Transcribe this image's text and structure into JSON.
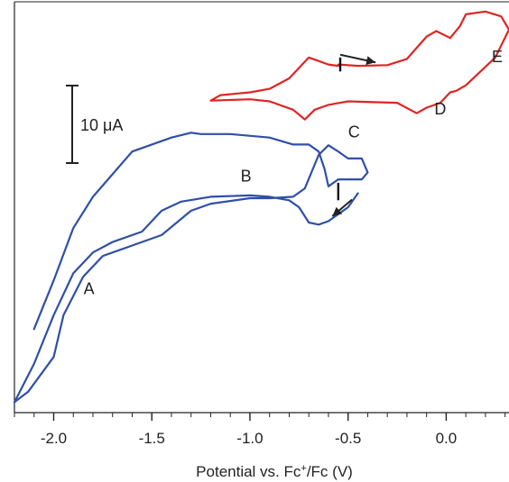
{
  "chart_data": {
    "type": "line",
    "title": "",
    "xlabel": "Potential vs. Fc",
    "xlabel_sup": "+",
    "xlabel_tail": "/Fc (V)",
    "ylabel": "",
    "xlim": [
      -2.2,
      0.32
    ],
    "x_ticks": [
      {
        "value": -2.0,
        "label": "-2.0"
      },
      {
        "value": -1.5,
        "label": "-1.5"
      },
      {
        "value": -1.0,
        "label": "-1.0"
      },
      {
        "value": -0.5,
        "label": "-0.5"
      },
      {
        "value": 0.0,
        "label": "0.0"
      }
    ],
    "grid": false,
    "scale_bar": {
      "label": "10 μA",
      "value_uA": 10
    },
    "series": [
      {
        "color": "#2f4fa8",
        "x": [
          -0.45,
          -0.5,
          -0.6,
          -0.65,
          -0.7,
          -0.75,
          -0.8,
          -0.9,
          -1.0,
          -1.2,
          -1.35,
          -1.45,
          -1.55,
          -1.7,
          -1.8,
          -1.9,
          -2.0,
          -2.1,
          -2.2,
          -2.13,
          -2.0,
          -1.95,
          -1.85,
          -1.75,
          -1.6,
          -1.45,
          -1.3,
          -1.2,
          -1.0,
          -0.9,
          -0.78,
          -0.72,
          -0.65,
          -0.6,
          -0.55,
          -0.5,
          -0.43,
          -0.4,
          -0.43,
          -0.55,
          -0.6,
          -0.62,
          -0.65,
          -0.7,
          -0.78,
          -0.9,
          -1.1,
          -1.25,
          -1.3,
          -1.4,
          -1.6,
          -1.8,
          -1.9,
          -2.0,
          -2.1
        ],
        "y": [
          -13.5,
          -15.5,
          -17.5,
          -18.0,
          -17.7,
          -15.5,
          -14.5,
          -14.0,
          -13.8,
          -14.0,
          -14.7,
          -16.0,
          -19.0,
          -20.5,
          -22.0,
          -25.0,
          -31.0,
          -38.0,
          -43.5,
          -42.0,
          -37.0,
          -31.0,
          -25.5,
          -22.5,
          -21.0,
          -19.5,
          -16.0,
          -15.0,
          -14.2,
          -14.2,
          -14.0,
          -12.8,
          -8.0,
          -6.6,
          -7.5,
          -8.5,
          -8.5,
          -10.5,
          -11.5,
          -11.5,
          -12.5,
          -10.0,
          -7.5,
          -6.5,
          -6.5,
          -5.5,
          -5.0,
          -5.0,
          -4.8,
          -5.5,
          -7.5,
          -14.0,
          -18.5,
          -26.0,
          -33.0
        ]
      },
      {
        "color": "#e02424",
        "x": [
          -0.55,
          -0.45,
          -0.3,
          -0.2,
          -0.1,
          -0.05,
          0.02,
          0.07,
          0.1,
          0.2,
          0.28,
          0.32,
          0.25,
          0.1,
          0.05,
          0.02,
          -0.03,
          -0.1,
          -0.15,
          -0.25,
          -0.5,
          -0.6,
          -0.67,
          -0.72,
          -0.78,
          -0.9,
          -1.0,
          -1.2,
          -1.15,
          -1.0,
          -0.9,
          -0.8,
          -0.7,
          -0.65,
          -0.6,
          -0.55
        ],
        "y": [
          5.0,
          4.8,
          4.9,
          5.8,
          9.0,
          9.8,
          8.8,
          10.5,
          12.2,
          12.6,
          11.9,
          10.0,
          6.0,
          2.0,
          1.2,
          1.0,
          -0.5,
          -1.2,
          -2.0,
          -0.5,
          -0.3,
          -0.8,
          -1.5,
          -2.9,
          -1.5,
          -0.3,
          0.0,
          -0.2,
          0.6,
          1.0,
          1.5,
          3.0,
          6.0,
          5.5,
          5.0,
          4.8
        ]
      }
    ],
    "annotations": [
      {
        "text": "A",
        "x": -1.82,
        "y": -28.0
      },
      {
        "text": "B",
        "x": -1.02,
        "y": -11.8
      },
      {
        "text": "C",
        "x": -0.47,
        "y": -5.5
      },
      {
        "text": "D",
        "x": -0.03,
        "y": -2.2
      },
      {
        "text": "E",
        "x": 0.26,
        "y": 5.3
      }
    ],
    "arrows": [
      {
        "x1": -0.54,
        "y1": 6.4,
        "x2": -0.36,
        "y2": 5.3,
        "color": "#222222"
      },
      {
        "x1": -0.48,
        "y1": -14.4,
        "x2": -0.58,
        "y2": -16.8,
        "color": "#222222"
      }
    ],
    "markers": [
      {
        "x": -0.54,
        "y0": 6.0,
        "y1": 4.0
      },
      {
        "x": -0.55,
        "y0": -12.0,
        "y1": -14.5
      }
    ]
  }
}
